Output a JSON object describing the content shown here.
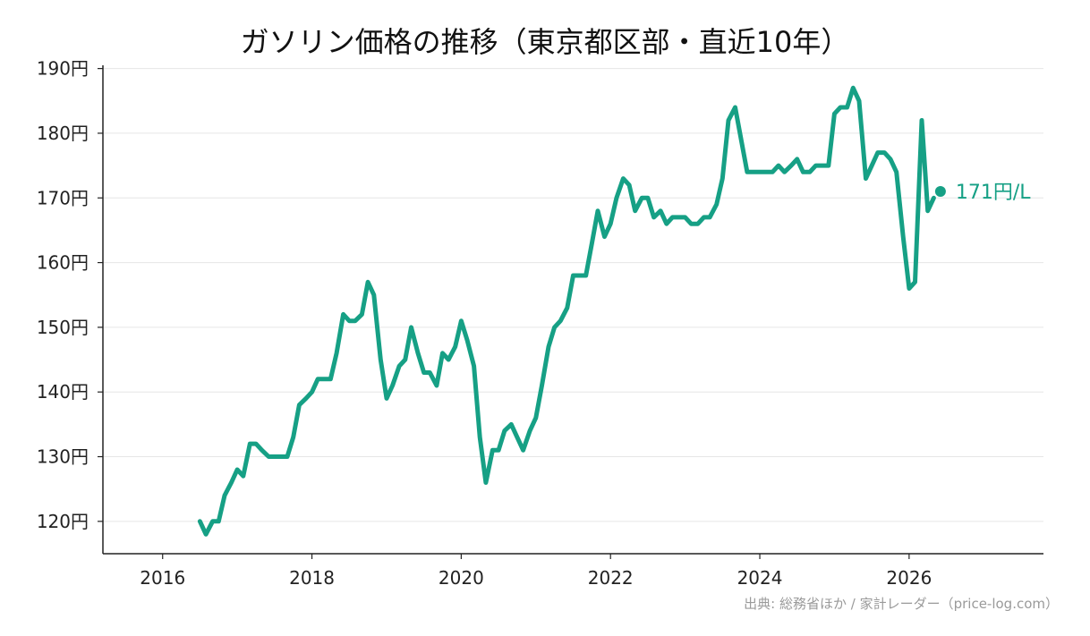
{
  "chart_data": {
    "type": "line",
    "title": "ガソリン価格の推移（東京都区部・直近10年）",
    "xlabel": "",
    "ylabel": "",
    "xlim": [
      2015.2,
      2027.8
    ],
    "ylim": [
      115,
      190.5
    ],
    "x_ticks": [
      2016,
      2018,
      2020,
      2022,
      2024,
      2026
    ],
    "x_tick_labels": [
      "2016",
      "2018",
      "2020",
      "2022",
      "2024",
      "2026"
    ],
    "y_ticks": [
      120,
      130,
      140,
      150,
      160,
      170,
      180,
      190
    ],
    "y_tick_labels": [
      "120円",
      "130円",
      "140円",
      "150円",
      "160円",
      "170円",
      "180円",
      "190円"
    ],
    "grid": "horizontal",
    "line_color": "#16a085",
    "series": [
      {
        "x": [
          2016.5,
          2016.58,
          2016.67,
          2016.75,
          2016.83,
          2016.92,
          2017.0,
          2017.08,
          2017.17,
          2017.25,
          2017.33,
          2017.42,
          2017.5,
          2017.58,
          2017.67,
          2017.75,
          2017.83,
          2017.92,
          2018.0,
          2018.08,
          2018.17,
          2018.25,
          2018.33,
          2018.42,
          2018.5,
          2018.58,
          2018.67,
          2018.75,
          2018.83,
          2018.92,
          2019.0,
          2019.08,
          2019.17,
          2019.25,
          2019.33,
          2019.42,
          2019.5,
          2019.58,
          2019.67,
          2019.75,
          2019.83,
          2019.92,
          2020.0,
          2020.08,
          2020.17,
          2020.25,
          2020.33,
          2020.42,
          2020.5,
          2020.58,
          2020.67,
          2020.75,
          2020.83,
          2020.92,
          2021.0,
          2021.08,
          2021.17,
          2021.25,
          2021.33,
          2021.42,
          2021.5,
          2021.58,
          2021.67,
          2021.75,
          2021.83,
          2021.92,
          2022.0,
          2022.08,
          2022.17,
          2022.25,
          2022.33,
          2022.42,
          2022.5,
          2022.58,
          2022.67,
          2022.75,
          2022.83,
          2022.92,
          2023.0,
          2023.08,
          2023.17,
          2023.25,
          2023.33,
          2023.42,
          2023.5,
          2023.58,
          2023.67,
          2023.75,
          2023.83,
          2023.92,
          2024.0,
          2024.08,
          2024.17,
          2024.25,
          2024.33,
          2024.42,
          2024.5,
          2024.58,
          2024.67,
          2024.75,
          2024.83,
          2024.92,
          2025.0,
          2025.08,
          2025.17,
          2025.25,
          2025.33,
          2025.42,
          2025.5,
          2025.58,
          2025.67,
          2025.75,
          2025.83,
          2025.92,
          2026.0,
          2026.08,
          2026.17,
          2026.25,
          2026.33
        ],
        "values": [
          120,
          118,
          120,
          120,
          124,
          126,
          128,
          127,
          132,
          132,
          131,
          130,
          130,
          130,
          130,
          133,
          138,
          139,
          140,
          142,
          142,
          142,
          146,
          152,
          151,
          151,
          152,
          157,
          155,
          145,
          139,
          141,
          144,
          145,
          150,
          146,
          143,
          143,
          141,
          146,
          145,
          147,
          151,
          148,
          144,
          133,
          126,
          131,
          131,
          134,
          135,
          133,
          131,
          134,
          136,
          141,
          147,
          150,
          151,
          153,
          158,
          158,
          158,
          163,
          168,
          164,
          166,
          170,
          173,
          172,
          168,
          170,
          170,
          167,
          168,
          166,
          167,
          167,
          167,
          166,
          166,
          167,
          167,
          169,
          173,
          182,
          184,
          179,
          174,
          174,
          174,
          174,
          174,
          175,
          174,
          175,
          176,
          174,
          174,
          175,
          175,
          175,
          183,
          184,
          184,
          187,
          185,
          173,
          175,
          177,
          177,
          176,
          174,
          164,
          156,
          157,
          182,
          168,
          170
        ]
      }
    ],
    "last_point": {
      "x": 2026.42,
      "y": 171,
      "label": "171円/L"
    },
    "source": "出典: 総務省ほか / 家計レーダー（price-log.com）"
  }
}
